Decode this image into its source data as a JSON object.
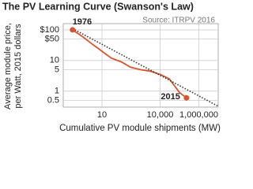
{
  "chart_data": {
    "type": "line",
    "title": "The PV Learning Curve (Swanson's Law)",
    "source": "Source: ITRPV 2016",
    "xlabel": "Cumulative PV module shipments (MW)",
    "ylabel": [
      "Average module price,",
      "per Watt, 2015 dollars"
    ],
    "xscale": "log",
    "yscale": "log",
    "grid": true,
    "xlim": [
      0.1,
      10000000
    ],
    "ylim": [
      0.3,
      160
    ],
    "xticks": [
      10,
      {
        "value": 10000,
        "label": "10,000"
      },
      {
        "value": 1000000,
        "label": "1,000,000"
      }
    ],
    "yticks": [
      {
        "value": 100,
        "label": "$100"
      },
      {
        "value": 50,
        "label": "$50"
      },
      10,
      5,
      1,
      0.5
    ],
    "series": [
      {
        "color": "#d9532c",
        "style": "solid",
        "x": [
          0.3,
          1,
          3,
          10,
          30,
          100,
          300,
          1000,
          3000,
          10000,
          30000,
          100000,
          230000
        ],
        "values": [
          100,
          60,
          35,
          20,
          12,
          9,
          6,
          5,
          4.5,
          3.5,
          2.5,
          0.9,
          0.6
        ]
      },
      {
        "color": "#333333",
        "style": "dotted",
        "x": [
          0.3,
          10000000
        ],
        "values": [
          110,
          0.32
        ]
      }
    ],
    "annotations": [
      "1976",
      "2015"
    ]
  }
}
